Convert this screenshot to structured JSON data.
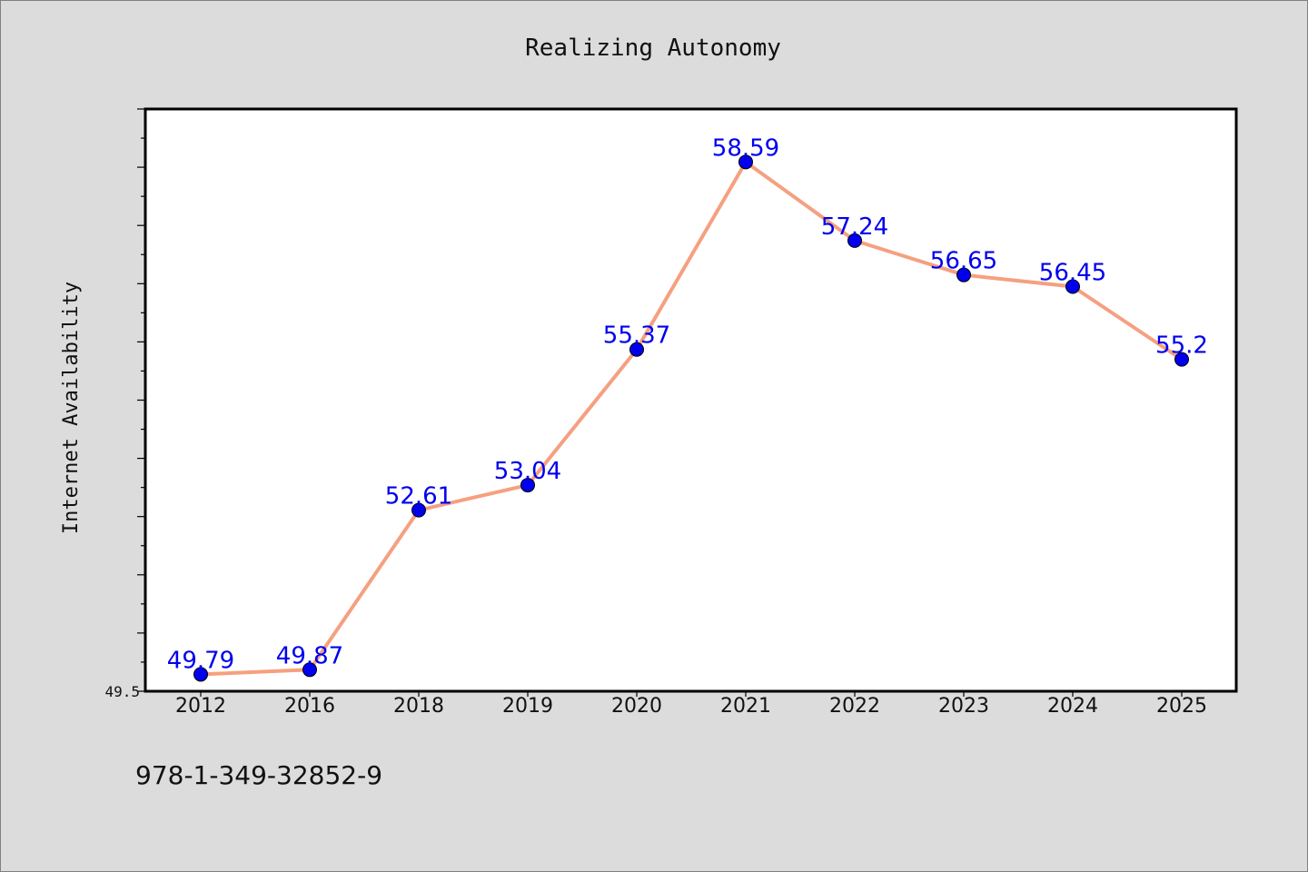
{
  "chart_data": {
    "type": "line",
    "title": "Realizing Autonomy",
    "xlabel": "",
    "ylabel": "Internet Availability",
    "categories": [
      "2012",
      "2016",
      "2018",
      "2019",
      "2020",
      "2021",
      "2022",
      "2023",
      "2024",
      "2025"
    ],
    "values": [
      49.79,
      49.87,
      52.61,
      53.04,
      55.37,
      58.59,
      57.24,
      56.65,
      56.45,
      55.2
    ],
    "data_labels": [
      "49.79",
      "49.87",
      "52.61",
      "53.04",
      "55.37",
      "58.59",
      "57.24",
      "56.65",
      "56.45",
      "55.2"
    ],
    "ylim": [
      49.5,
      59.5
    ],
    "y_tick_labels": [
      "49.5"
    ],
    "grid": false,
    "legend": "none",
    "colors": {
      "line": "#f5a080",
      "marker": "#0000ee",
      "data_label": "#0000ee",
      "plot_bg": "#ffffff",
      "figure_bg": "#dcdcdc"
    }
  },
  "footer": {
    "text": "978-1-349-32852-9"
  }
}
